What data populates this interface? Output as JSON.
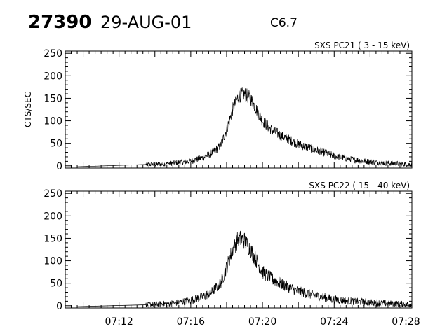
{
  "header": {
    "event_id": "27390",
    "date": "29-AUG-01",
    "flare_class": "C6.7"
  },
  "chart_data": [
    {
      "type": "line",
      "title": "SXS PC21  (  3 - 15 keV)",
      "ylabel": "CTS/SEC",
      "xlabel": "",
      "xlim": [
        "07:09",
        "07:28:20"
      ],
      "ylim": [
        -5,
        255
      ],
      "yticks": [
        0,
        50,
        100,
        150,
        200,
        250
      ],
      "xticks": [],
      "grid": false,
      "noise": 7,
      "series": [
        {
          "x": [
            "07:09:40",
            "07:13:30",
            "07:14:00",
            "07:15:00",
            "07:16:00",
            "07:16:40",
            "07:17:10",
            "07:17:40",
            "07:18:00",
            "07:18:20",
            "07:18:40",
            "07:19:00",
            "07:19:20",
            "07:19:40",
            "07:20:00",
            "07:20:30",
            "07:21:00",
            "07:21:30",
            "07:22:00",
            "07:23:00",
            "07:24:00",
            "07:25:00",
            "07:26:00",
            "07:27:00",
            "07:28:20"
          ],
          "values": [
            -2,
            3,
            3,
            6,
            10,
            18,
            28,
            45,
            80,
            125,
            155,
            160,
            150,
            125,
            100,
            80,
            68,
            58,
            48,
            35,
            22,
            14,
            9,
            6,
            3
          ]
        }
      ]
    },
    {
      "type": "line",
      "title": "SXS PC22  ( 15 - 40 keV)",
      "ylabel": "",
      "xlabel": "",
      "xlim": [
        "07:09",
        "07:28:20"
      ],
      "ylim": [
        -5,
        255
      ],
      "yticks": [
        0,
        50,
        100,
        150,
        200,
        250
      ],
      "xticks": [
        "07:12",
        "07:16",
        "07:20",
        "07:24",
        "07:28"
      ],
      "grid": false,
      "noise": 9,
      "series": [
        {
          "x": [
            "07:09:40",
            "07:13:30",
            "07:14:00",
            "07:15:00",
            "07:16:00",
            "07:16:40",
            "07:17:10",
            "07:17:40",
            "07:18:00",
            "07:18:20",
            "07:18:40",
            "07:19:00",
            "07:19:20",
            "07:19:40",
            "07:20:00",
            "07:20:30",
            "07:21:00",
            "07:21:30",
            "07:22:00",
            "07:23:00",
            "07:24:00",
            "07:25:00",
            "07:26:00",
            "07:27:00",
            "07:28:20"
          ],
          "values": [
            -2,
            2,
            3,
            5,
            12,
            20,
            30,
            50,
            85,
            125,
            150,
            145,
            125,
            100,
            75,
            60,
            50,
            40,
            32,
            22,
            14,
            10,
            7,
            5,
            3
          ]
        }
      ]
    }
  ]
}
